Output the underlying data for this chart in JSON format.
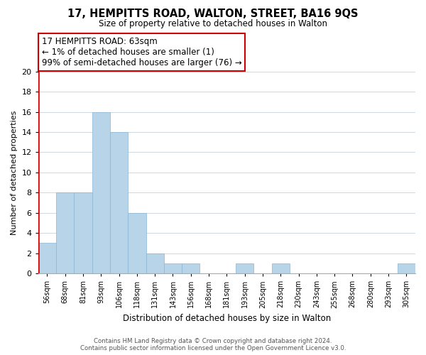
{
  "title": "17, HEMPITTS ROAD, WALTON, STREET, BA16 9QS",
  "subtitle": "Size of property relative to detached houses in Walton",
  "xlabel": "Distribution of detached houses by size in Walton",
  "ylabel": "Number of detached properties",
  "bar_labels": [
    "56sqm",
    "68sqm",
    "81sqm",
    "93sqm",
    "106sqm",
    "118sqm",
    "131sqm",
    "143sqm",
    "156sqm",
    "168sqm",
    "181sqm",
    "193sqm",
    "205sqm",
    "218sqm",
    "230sqm",
    "243sqm",
    "255sqm",
    "268sqm",
    "280sqm",
    "293sqm",
    "305sqm"
  ],
  "bar_values": [
    3,
    8,
    8,
    16,
    14,
    6,
    2,
    1,
    1,
    0,
    0,
    1,
    0,
    1,
    0,
    0,
    0,
    0,
    0,
    0,
    1
  ],
  "bar_color": "#b8d4e8",
  "bar_edge_color": "#8ab4d4",
  "highlight_color": "#cc0000",
  "ylim": [
    0,
    20
  ],
  "yticks": [
    0,
    2,
    4,
    6,
    8,
    10,
    12,
    14,
    16,
    18,
    20
  ],
  "annotation_title": "17 HEMPITTS ROAD: 63sqm",
  "annotation_line1": "← 1% of detached houses are smaller (1)",
  "annotation_line2": "99% of semi-detached houses are larger (76) →",
  "footer_line1": "Contains HM Land Registry data © Crown copyright and database right 2024.",
  "footer_line2": "Contains public sector information licensed under the Open Government Licence v3.0.",
  "background_color": "#ffffff",
  "grid_color": "#d0d8e0"
}
